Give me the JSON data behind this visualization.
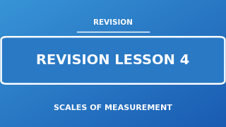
{
  "bg_color_tl": [
    0.22,
    0.58,
    0.84
  ],
  "bg_color_br": [
    0.1,
    0.36,
    0.7
  ],
  "top_label": "REVISION",
  "main_label": "REVISION LESSON 4",
  "sub_label": "SCALES OF MEASUREMENT",
  "text_color": "#ffffff",
  "box_edge_color": "#ffffff",
  "figsize": [
    3.2,
    1.8
  ],
  "dpi": 100
}
